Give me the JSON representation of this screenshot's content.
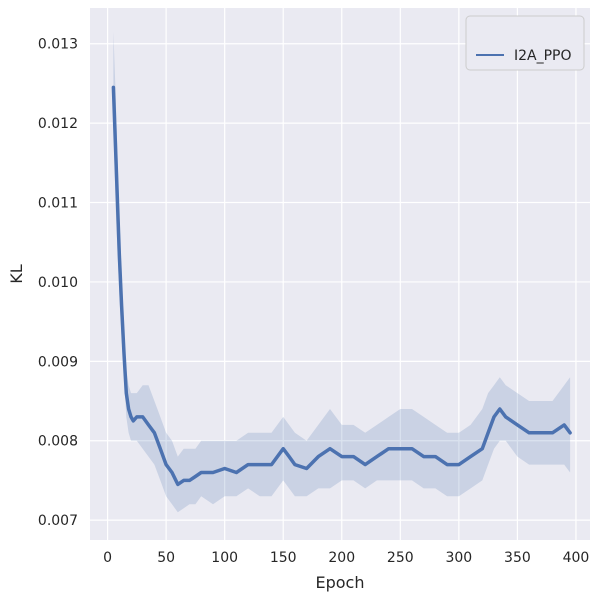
{
  "chart_data": {
    "type": "line",
    "title": "",
    "xlabel": "Epoch",
    "ylabel": "KL",
    "xlim": [
      -15,
      412
    ],
    "ylim": [
      0.00675,
      0.01345
    ],
    "xticks": [
      0,
      50,
      100,
      150,
      200,
      250,
      300,
      350,
      400
    ],
    "xtick_labels": [
      "0",
      "50",
      "100",
      "150",
      "200",
      "250",
      "300",
      "350",
      "400"
    ],
    "yticks": [
      0.007,
      0.008,
      0.009,
      0.01,
      0.011,
      0.012,
      0.013
    ],
    "ytick_labels": [
      "0.007",
      "0.008",
      "0.009",
      "0.010",
      "0.011",
      "0.012",
      "0.013"
    ],
    "grid": true,
    "legend_position": "top-right",
    "colors": {
      "background": "#eaeaf2",
      "grid": "#ffffff",
      "line": "#4c72b0",
      "band": "#4c72b0"
    },
    "series": [
      {
        "name": "I2A_PPO",
        "x": [
          5,
          7,
          10,
          12,
          14,
          16,
          18,
          20,
          22,
          25,
          30,
          35,
          40,
          45,
          50,
          55,
          60,
          65,
          70,
          75,
          80,
          90,
          100,
          110,
          120,
          130,
          140,
          150,
          155,
          160,
          170,
          180,
          190,
          200,
          210,
          220,
          230,
          240,
          250,
          260,
          270,
          280,
          290,
          300,
          310,
          320,
          325,
          330,
          335,
          340,
          350,
          360,
          370,
          380,
          390,
          395
        ],
        "y": [
          0.01245,
          0.0116,
          0.01035,
          0.0097,
          0.0091,
          0.0086,
          0.0084,
          0.0083,
          0.00825,
          0.0083,
          0.0083,
          0.0082,
          0.0081,
          0.0079,
          0.0077,
          0.0076,
          0.00745,
          0.0075,
          0.0075,
          0.00755,
          0.0076,
          0.0076,
          0.00765,
          0.0076,
          0.0077,
          0.0077,
          0.0077,
          0.0079,
          0.0078,
          0.0077,
          0.00765,
          0.0078,
          0.0079,
          0.0078,
          0.0078,
          0.0077,
          0.0078,
          0.0079,
          0.0079,
          0.0079,
          0.0078,
          0.0078,
          0.0077,
          0.0077,
          0.0078,
          0.0079,
          0.0081,
          0.0083,
          0.0084,
          0.0083,
          0.0082,
          0.0081,
          0.0081,
          0.0081,
          0.0082,
          0.0081
        ],
        "lower": [
          0.01195,
          0.0109,
          0.00985,
          0.0093,
          0.0088,
          0.0083,
          0.0081,
          0.008,
          0.008,
          0.008,
          0.0079,
          0.0078,
          0.0077,
          0.0075,
          0.0073,
          0.0072,
          0.0071,
          0.00715,
          0.0072,
          0.0072,
          0.0073,
          0.0072,
          0.0073,
          0.0073,
          0.0074,
          0.0073,
          0.0073,
          0.0075,
          0.0074,
          0.0073,
          0.0073,
          0.0074,
          0.0074,
          0.0075,
          0.0075,
          0.0074,
          0.0075,
          0.0075,
          0.0075,
          0.0075,
          0.0074,
          0.0074,
          0.0073,
          0.0073,
          0.0074,
          0.0075,
          0.0077,
          0.0079,
          0.008,
          0.008,
          0.0078,
          0.0077,
          0.0077,
          0.0077,
          0.0077,
          0.0076
        ],
        "upper": [
          0.01315,
          0.0123,
          0.01085,
          0.0101,
          0.0094,
          0.0089,
          0.0087,
          0.0086,
          0.0086,
          0.0086,
          0.0087,
          0.0087,
          0.0085,
          0.0083,
          0.0081,
          0.008,
          0.0078,
          0.0079,
          0.0079,
          0.0079,
          0.008,
          0.008,
          0.008,
          0.008,
          0.0081,
          0.0081,
          0.0081,
          0.0083,
          0.0082,
          0.0081,
          0.008,
          0.0082,
          0.0084,
          0.0082,
          0.0082,
          0.0081,
          0.0082,
          0.0083,
          0.0084,
          0.0084,
          0.0083,
          0.0082,
          0.0081,
          0.0081,
          0.0082,
          0.0084,
          0.0086,
          0.0087,
          0.0088,
          0.0087,
          0.0086,
          0.0085,
          0.0085,
          0.0085,
          0.0087,
          0.0088
        ]
      }
    ]
  }
}
